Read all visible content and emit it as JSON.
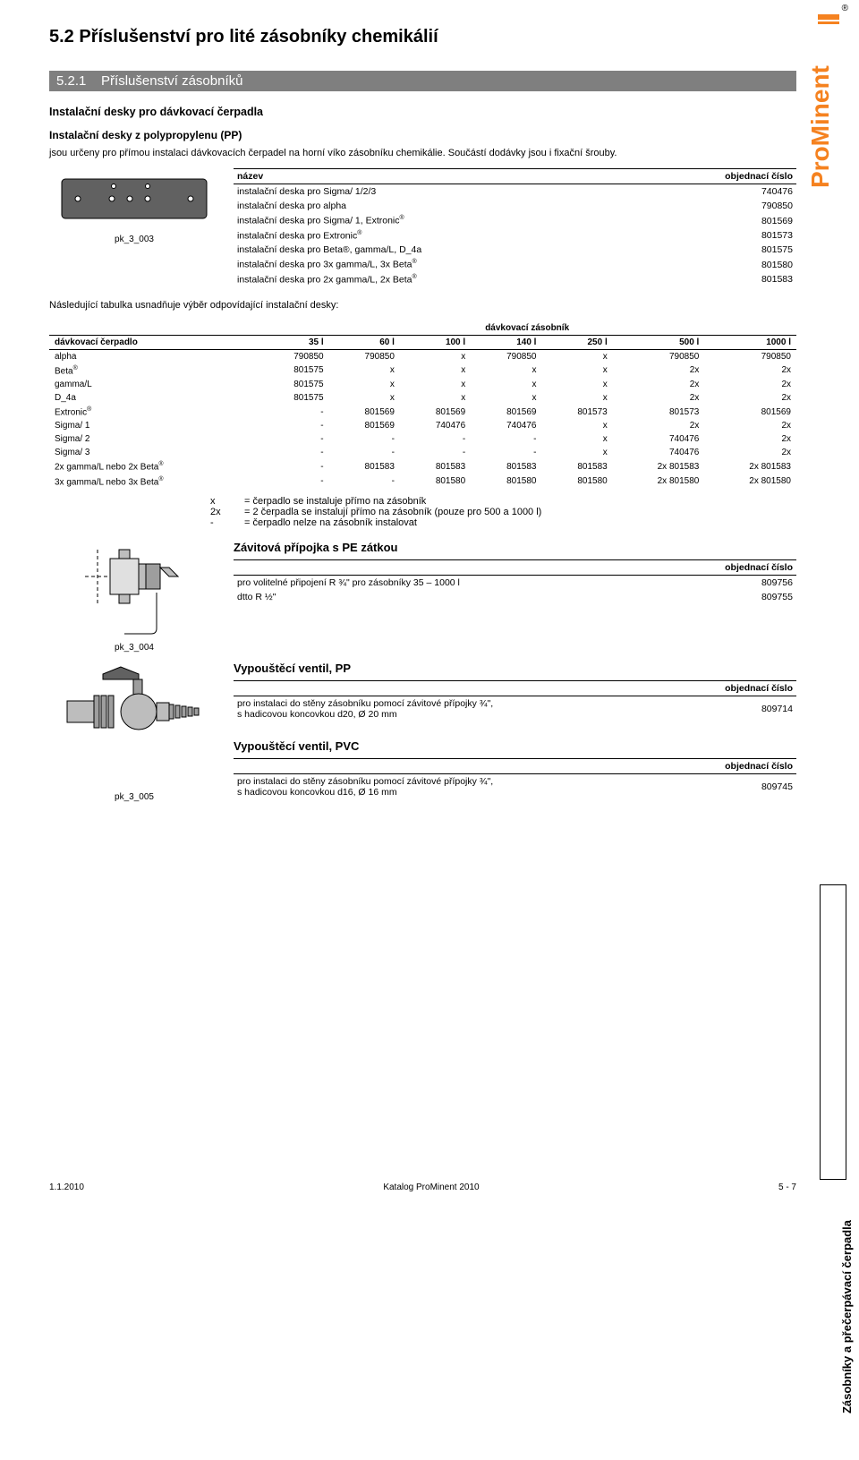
{
  "brand": {
    "name": "ProMinent",
    "reg": "®",
    "color": "#f58220"
  },
  "page": {
    "title": "5.2   Příslušenství pro lité zásobníky chemikálií",
    "section": {
      "num": "5.2.1",
      "title": "Příslušenství zásobníků"
    }
  },
  "s1": {
    "h3": "Instalační desky pro dávkovací čerpadla",
    "h4": "Instalační desky z polypropylenu (PP)",
    "p1": "jsou určeny pro přímou instalaci dávkovacích čerpadel na horní víko zásobníku chemikálie. Součástí dodávky jsou i fixační šrouby.",
    "fig_id": "pk_3_003",
    "table": {
      "head_left": "název",
      "head_right": "objednací číslo",
      "rows": [
        {
          "name": "instalační deska pro Sigma/ 1/2/3",
          "num": "740476"
        },
        {
          "name": "instalační deska pro alpha",
          "num": "790850"
        },
        {
          "name_html": "instalační deska pro Sigma/ 1, Extronic",
          "sup": "®",
          "num": "801569"
        },
        {
          "name_html": "instalační deska pro Extronic",
          "sup": "®",
          "num": "801573"
        },
        {
          "name_html": "instalační deska pro Beta®, gamma/L, D_4a",
          "num": "801575"
        },
        {
          "name_html": "instalační deska pro 3x gamma/L, 3x Beta",
          "sup": "®",
          "num": "801580"
        },
        {
          "name_html": "instalační deska pro 2x gamma/L, 2x Beta",
          "sup": "®",
          "num": "801583"
        }
      ]
    },
    "after": "Následující tabulka usnadňuje výběr odpovídající instalační desky:"
  },
  "compat": {
    "span_label": "dávkovací zásobník",
    "row_label": "dávkovací čerpadlo",
    "cols": [
      "35 l",
      "60 l",
      "100 l",
      "140 l",
      "250 l",
      "500 l",
      "1000 l"
    ],
    "rows": [
      {
        "name": "alpha",
        "v": [
          "790850",
          "790850",
          "x",
          "790850",
          "x",
          "790850",
          "790850"
        ]
      },
      {
        "name": "Beta",
        "sup": "®",
        "v": [
          "801575",
          "x",
          "x",
          "x",
          "x",
          "2x",
          "2x"
        ]
      },
      {
        "name": "gamma/L",
        "v": [
          "801575",
          "x",
          "x",
          "x",
          "x",
          "2x",
          "2x"
        ]
      },
      {
        "name": "D_4a",
        "v": [
          "801575",
          "x",
          "x",
          "x",
          "x",
          "2x",
          "2x"
        ]
      },
      {
        "name": "Extronic",
        "sup": "®",
        "v": [
          "-",
          "801569",
          "801569",
          "801569",
          "801573",
          "801573",
          "801569"
        ]
      },
      {
        "name": "Sigma/ 1",
        "v": [
          "-",
          "801569",
          "740476",
          "740476",
          "x",
          "2x",
          "2x"
        ]
      },
      {
        "name": "Sigma/ 2",
        "v": [
          "-",
          "-",
          "-",
          "-",
          "x",
          "740476",
          "2x"
        ]
      },
      {
        "name": "Sigma/ 3",
        "v": [
          "-",
          "-",
          "-",
          "-",
          "x",
          "740476",
          "2x"
        ]
      },
      {
        "name": "2x gamma/L nebo 2x Beta",
        "sup": "®",
        "v": [
          "-",
          "801583",
          "801583",
          "801583",
          "801583",
          "2x 801583",
          "2x 801583"
        ]
      },
      {
        "name": "3x gamma/L nebo 3x Beta",
        "sup": "®",
        "v": [
          "-",
          "-",
          "801580",
          "801580",
          "801580",
          "2x 801580",
          "2x 801580"
        ]
      }
    ],
    "legend": [
      {
        "k": "x",
        "t": "= čerpadlo se instaluje přímo na zásobník"
      },
      {
        "k": "2x",
        "t": "= 2 čerpadla se instalují přímo na zásobník (pouze pro 500 a 1000 l)"
      },
      {
        "k": "-",
        "t": "= čerpadlo nelze na zásobník instalovat"
      }
    ]
  },
  "s2": {
    "title": "Závitová přípojka s PE zátkou",
    "head_right": "objednací číslo",
    "rows": [
      {
        "name": "pro volitelné připojení R ¾\" pro zásobníky 35 – 1000 l",
        "num": "809756"
      },
      {
        "name": "dtto R ½\"",
        "num": "809755"
      }
    ],
    "fig_id": "pk_3_004"
  },
  "s3": {
    "title1": "Vypouštěcí ventil, PP",
    "head_right": "objednací číslo",
    "rows1": [
      {
        "name": "pro instalaci do stěny zásobníku pomocí závitové přípojky ¾\",\ns hadicovou koncovkou d20, Ø 20 mm",
        "num": "809714"
      }
    ],
    "title2": "Vypouštěcí ventil, PVC",
    "rows2": [
      {
        "name": "pro instalaci do stěny zásobníku pomocí závitové přípojky ¾\",\ns hadicovou koncovkou d16, Ø 16 mm",
        "num": "809745"
      }
    ],
    "fig_id": "pk_3_005"
  },
  "side": {
    "label": "Zásobníky a přečerpávací čerpadla"
  },
  "footer": {
    "left": "1.1.2010",
    "center": "Katalog ProMinent 2010",
    "right": "5 - 7"
  }
}
